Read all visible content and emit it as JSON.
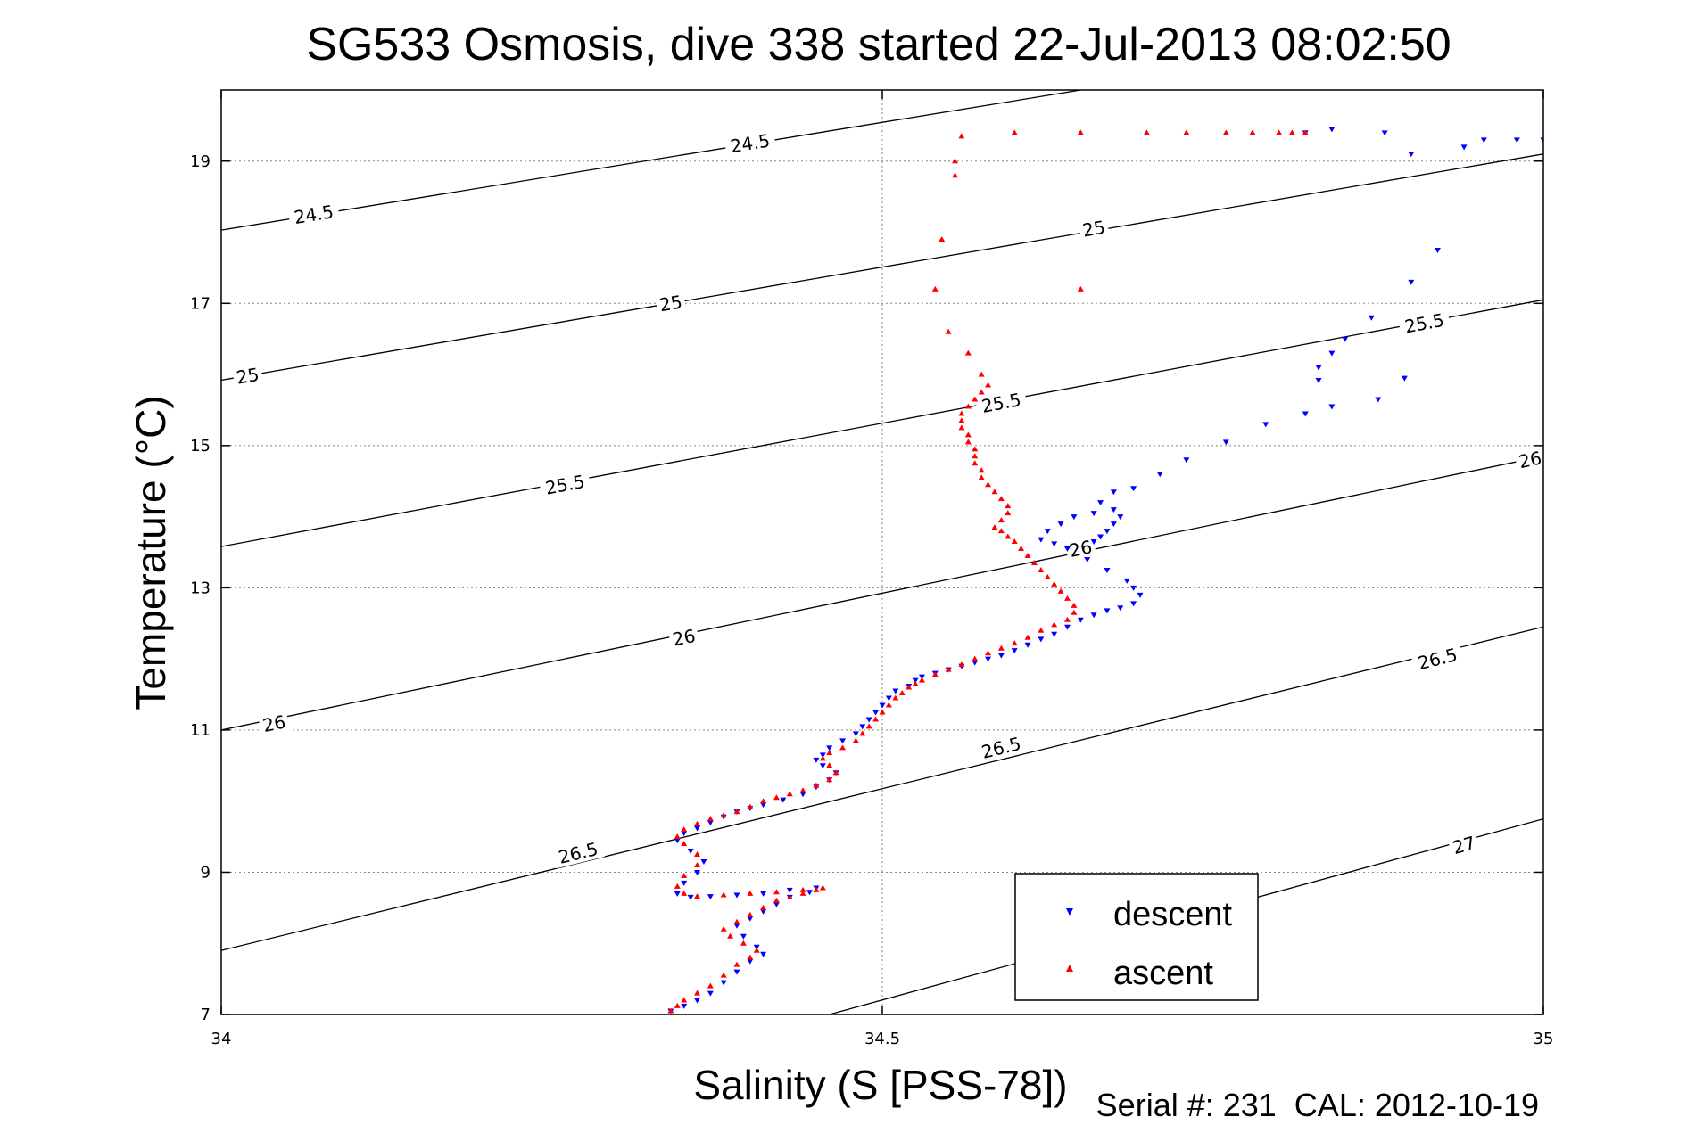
{
  "chart_data": {
    "type": "scatter",
    "title": "SG533 Osmosis, dive 338 started 22-Jul-2013 08:02:50",
    "xlabel": "Salinity (S [PSS-78])",
    "ylabel": "Temperature (°C)",
    "footer": "Serial #: 231  CAL: 2012-10-19",
    "xlim": [
      34,
      35
    ],
    "ylim": [
      7,
      20
    ],
    "x_ticks": [
      34,
      34.5,
      35
    ],
    "x_tick_labels": [
      "34",
      "34.5",
      "35"
    ],
    "y_ticks": [
      7,
      9,
      11,
      13,
      15,
      17,
      19
    ],
    "y_tick_labels": [
      "7",
      "9",
      "11",
      "13",
      "15",
      "17",
      "19"
    ],
    "grid": "dotted at ticks",
    "legend": {
      "position": "bottom-right",
      "entries": [
        {
          "label": "descent",
          "color": "#0000ff",
          "marker": "triangle-down"
        },
        {
          "label": "ascent",
          "color": "#ff0000",
          "marker": "triangle-up"
        }
      ]
    },
    "density_contours": [
      {
        "sigma": "24.5",
        "x": [
          34.0,
          34.65
        ],
        "y": [
          18.03,
          20.0
        ],
        "labels": [
          [
            34.07,
            18.25
          ],
          [
            34.4,
            19.25
          ]
        ]
      },
      {
        "sigma": "25",
        "x": [
          34.0,
          35.0
        ],
        "y": [
          15.92,
          19.1
        ],
        "labels": [
          [
            34.02,
            15.98
          ],
          [
            34.34,
            17.0
          ],
          [
            34.66,
            18.05
          ]
        ]
      },
      {
        "sigma": "25.5",
        "x": [
          34.0,
          35.0
        ],
        "y": [
          13.58,
          17.05
        ],
        "labels": [
          [
            34.26,
            14.45
          ],
          [
            34.59,
            15.6
          ],
          [
            34.91,
            16.72
          ]
        ]
      },
      {
        "sigma": "26",
        "x": [
          34.0,
          35.0
        ],
        "y": [
          11.0,
          14.85
        ],
        "labels": [
          [
            34.04,
            11.09
          ],
          [
            34.35,
            12.3
          ],
          [
            34.65,
            13.55
          ],
          [
            34.99,
            14.8
          ]
        ]
      },
      {
        "sigma": "26.5",
        "x": [
          34.0,
          35.0
        ],
        "y": [
          7.9,
          12.45
        ],
        "labels": [
          [
            34.27,
            9.27
          ],
          [
            34.59,
            10.75
          ],
          [
            34.92,
            12.0
          ]
        ]
      },
      {
        "sigma": "27",
        "x": [
          34.46,
          35.0
        ],
        "y": [
          7.0,
          9.75
        ],
        "labels": [
          [
            34.94,
            9.38
          ]
        ]
      }
    ],
    "series": [
      {
        "name": "descent",
        "color": "#0000ff",
        "marker": "triangle-down",
        "x": [
          34.34,
          34.35,
          34.36,
          34.37,
          34.38,
          34.39,
          34.4,
          34.41,
          34.405,
          34.395,
          34.39,
          34.4,
          34.41,
          34.42,
          34.43,
          34.445,
          34.45,
          34.43,
          34.41,
          34.39,
          34.37,
          34.355,
          34.345,
          34.35,
          34.36,
          34.365,
          34.355,
          34.345,
          34.35,
          34.36,
          34.37,
          34.38,
          34.39,
          34.4,
          34.41,
          34.425,
          34.44,
          34.45,
          34.46,
          34.465,
          34.455,
          34.45,
          34.455,
          34.46,
          34.47,
          34.48,
          34.485,
          34.49,
          34.495,
          34.5,
          34.505,
          34.51,
          34.52,
          34.525,
          34.53,
          34.54,
          34.55,
          34.56,
          34.57,
          34.58,
          34.59,
          34.6,
          34.61,
          34.62,
          34.63,
          34.64,
          34.65,
          34.66,
          34.67,
          34.68,
          34.69,
          34.695,
          34.69,
          34.685,
          34.67,
          34.655,
          34.64,
          34.63,
          34.62,
          34.625,
          34.635,
          34.645,
          34.66,
          34.675,
          34.68,
          34.675,
          34.67,
          34.665,
          34.66,
          34.665,
          34.675,
          34.69,
          34.71,
          34.73,
          34.76,
          34.79,
          34.82,
          34.84,
          34.83,
          34.84,
          34.85,
          34.87,
          34.9,
          34.92,
          34.895,
          34.875,
          34.83,
          34.82,
          34.84,
          34.88,
          34.9,
          34.94,
          34.955,
          34.98,
          35.0
        ],
        "y": [
          7.05,
          7.12,
          7.2,
          7.3,
          7.45,
          7.6,
          7.75,
          7.85,
          7.95,
          8.1,
          8.25,
          8.35,
          8.45,
          8.55,
          8.65,
          8.72,
          8.78,
          8.75,
          8.7,
          8.68,
          8.66,
          8.65,
          8.7,
          8.85,
          9.0,
          9.15,
          9.3,
          9.45,
          9.55,
          9.62,
          9.7,
          9.78,
          9.85,
          9.9,
          9.95,
          10.02,
          10.1,
          10.2,
          10.3,
          10.4,
          10.5,
          10.58,
          10.65,
          10.75,
          10.85,
          10.95,
          11.05,
          11.15,
          11.25,
          11.35,
          11.45,
          11.55,
          11.62,
          11.7,
          11.75,
          11.8,
          11.85,
          11.9,
          11.95,
          12.0,
          12.05,
          12.12,
          12.2,
          12.28,
          12.35,
          12.45,
          12.55,
          12.62,
          12.68,
          12.72,
          12.78,
          12.9,
          13.0,
          13.1,
          13.25,
          13.4,
          13.55,
          13.62,
          13.68,
          13.8,
          13.9,
          14.0,
          14.05,
          14.1,
          14.0,
          13.9,
          13.8,
          13.72,
          13.65,
          14.2,
          14.35,
          14.4,
          14.6,
          14.8,
          15.05,
          15.3,
          15.45,
          15.55,
          16.1,
          16.3,
          16.5,
          16.8,
          17.3,
          17.75,
          15.95,
          15.65,
          15.92,
          19.4,
          19.45,
          19.4,
          19.1,
          19.2,
          19.3,
          19.3,
          19.3
        ]
      },
      {
        "name": "ascent",
        "color": "#ff0000",
        "marker": "triangle-up",
        "x": [
          34.34,
          34.345,
          34.35,
          34.36,
          34.37,
          34.38,
          34.39,
          34.4,
          34.405,
          34.395,
          34.385,
          34.38,
          34.39,
          34.4,
          34.41,
          34.42,
          34.43,
          34.44,
          34.45,
          34.455,
          34.44,
          34.42,
          34.4,
          34.38,
          34.36,
          34.35,
          34.345,
          34.35,
          34.36,
          34.36,
          34.35,
          34.345,
          34.35,
          34.36,
          34.37,
          34.38,
          34.39,
          34.4,
          34.41,
          34.42,
          34.43,
          34.44,
          34.45,
          34.46,
          34.465,
          34.46,
          34.455,
          34.46,
          34.47,
          34.48,
          34.485,
          34.49,
          34.495,
          34.5,
          34.505,
          34.51,
          34.515,
          34.52,
          34.525,
          34.53,
          34.54,
          34.55,
          34.56,
          34.57,
          34.58,
          34.59,
          34.6,
          34.61,
          34.62,
          34.63,
          34.64,
          34.645,
          34.645,
          34.64,
          34.635,
          34.63,
          34.625,
          34.62,
          34.615,
          34.61,
          34.605,
          34.6,
          34.595,
          34.59,
          34.585,
          34.59,
          34.595,
          34.595,
          34.59,
          34.585,
          34.58,
          34.575,
          34.575,
          34.57,
          34.57,
          34.57,
          34.565,
          34.565,
          34.56,
          34.56,
          34.56,
          34.565,
          34.57,
          34.575,
          34.58,
          34.575,
          34.565,
          34.55,
          34.54,
          34.65,
          34.545,
          34.555,
          34.555,
          34.56,
          34.6,
          34.65,
          34.7,
          34.73,
          34.76,
          34.78,
          34.8,
          34.81,
          34.82
        ],
        "y": [
          7.05,
          7.12,
          7.2,
          7.3,
          7.4,
          7.55,
          7.7,
          7.8,
          7.9,
          8.0,
          8.1,
          8.2,
          8.3,
          8.4,
          8.5,
          8.6,
          8.65,
          8.7,
          8.75,
          8.78,
          8.75,
          8.72,
          8.7,
          8.68,
          8.66,
          8.7,
          8.8,
          8.95,
          9.1,
          9.25,
          9.4,
          9.5,
          9.6,
          9.68,
          9.75,
          9.8,
          9.85,
          9.92,
          10.0,
          10.05,
          10.1,
          10.15,
          10.22,
          10.3,
          10.4,
          10.5,
          10.6,
          10.68,
          10.75,
          10.85,
          10.95,
          11.05,
          11.15,
          11.25,
          11.35,
          11.45,
          11.52,
          11.6,
          11.65,
          11.7,
          11.78,
          11.85,
          11.92,
          12.0,
          12.08,
          12.15,
          12.22,
          12.3,
          12.4,
          12.48,
          12.55,
          12.65,
          12.75,
          12.85,
          12.95,
          13.05,
          13.15,
          13.25,
          13.35,
          13.45,
          13.55,
          13.65,
          13.72,
          13.8,
          13.85,
          13.95,
          14.05,
          14.15,
          14.25,
          14.35,
          14.45,
          14.55,
          14.65,
          14.75,
          14.85,
          14.95,
          15.05,
          15.15,
          15.25,
          15.35,
          15.45,
          15.55,
          15.65,
          15.75,
          15.85,
          16.0,
          16.3,
          16.6,
          17.2,
          17.2,
          17.9,
          18.8,
          19.0,
          19.35,
          19.4,
          19.4,
          19.4,
          19.4,
          19.4,
          19.4,
          19.4,
          19.4,
          19.4
        ]
      }
    ]
  }
}
